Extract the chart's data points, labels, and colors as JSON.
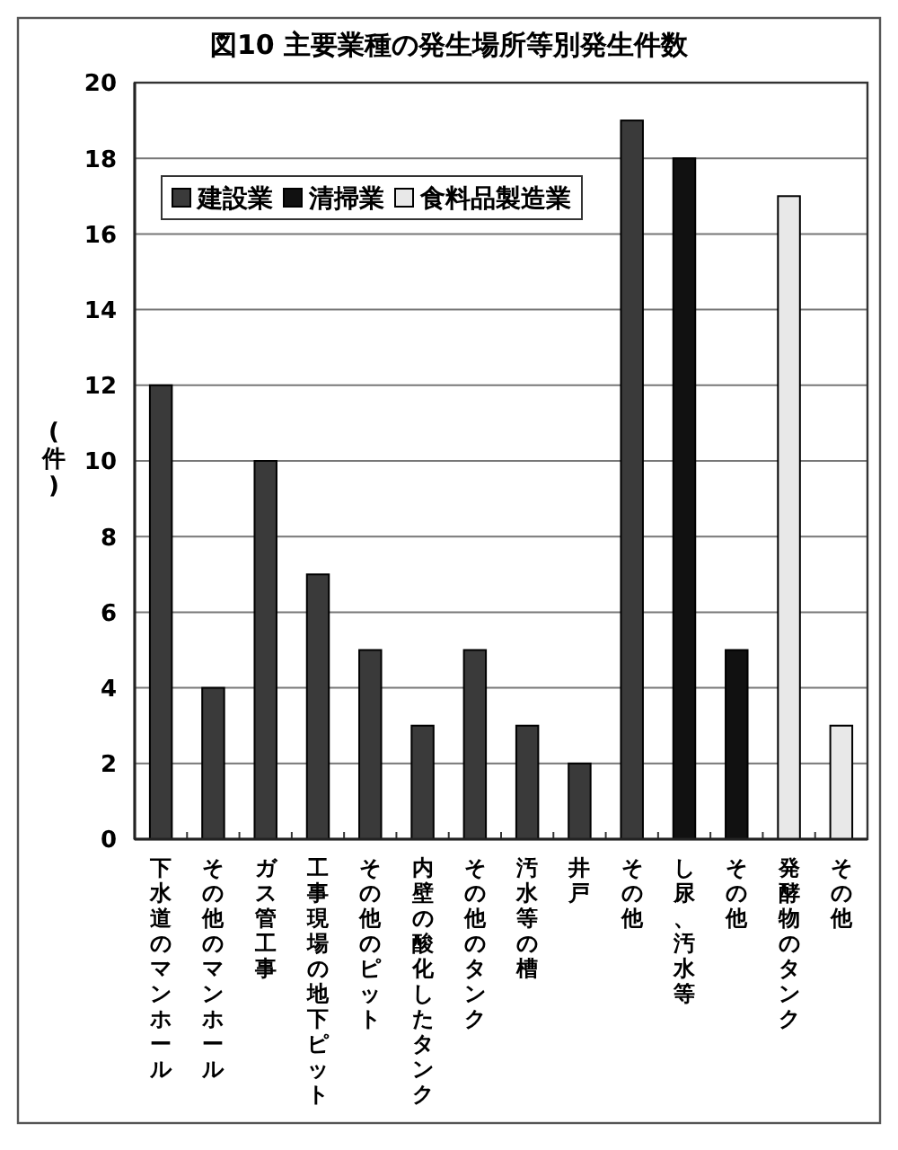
{
  "chart_data": {
    "type": "bar",
    "title": "図10 主要業種の発生場所等別発生件数",
    "ylabel": "(件)",
    "categories": [
      "下水道のマンホール",
      "その他のマンホール",
      "ガス管工事",
      "工事現場の地下ピット",
      "その他のピット",
      "内壁の酸化したタンク",
      "その他のタンク",
      "汚水等の槽",
      "井戸",
      "その他",
      "し尿、汚水等",
      "その他",
      "発酵物のタンク",
      "その他"
    ],
    "series": [
      {
        "name": "建設業",
        "color": "#3a3a3a",
        "values": [
          12,
          4,
          10,
          7,
          5,
          3,
          5,
          3,
          2,
          19,
          null,
          null,
          null,
          null
        ]
      },
      {
        "name": "清掃業",
        "color": "#111111",
        "values": [
          null,
          null,
          null,
          null,
          null,
          null,
          null,
          null,
          null,
          null,
          18,
          5,
          null,
          null
        ]
      },
      {
        "name": "食料品製造業",
        "color": "#e8e8e8",
        "values": [
          null,
          null,
          null,
          null,
          null,
          null,
          null,
          null,
          null,
          null,
          null,
          null,
          17,
          3
        ]
      }
    ],
    "ylim": [
      0,
      20
    ],
    "yticks": [
      0,
      2,
      4,
      6,
      8,
      10,
      12,
      14,
      16,
      18,
      20
    ],
    "grid": "y",
    "legend": "top left"
  }
}
